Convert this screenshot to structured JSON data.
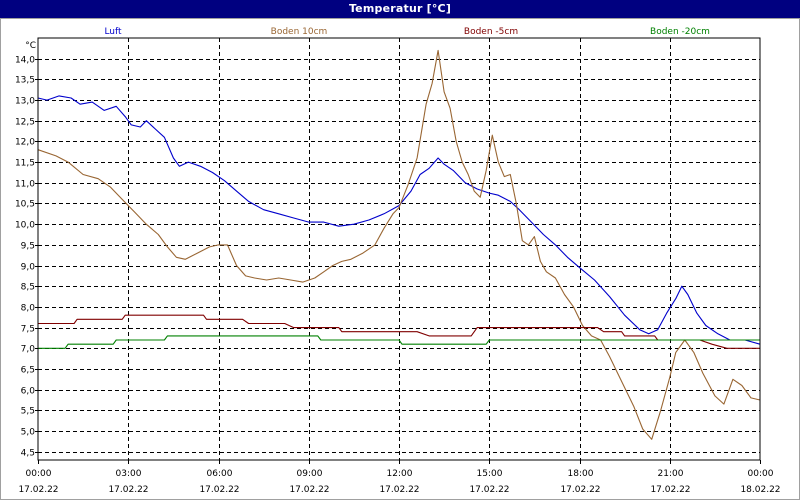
{
  "window": {
    "title": "Temperatur [°C]"
  },
  "colors": {
    "titlebar": "#000080",
    "grid": "#000000",
    "axis_text": "#000000"
  },
  "chart_data": {
    "type": "line",
    "title": "Temperatur [°C]",
    "ylabel": "°C",
    "xlabel": "",
    "ylim": [
      4.3,
      14.5
    ],
    "xlim": [
      0,
      24
    ],
    "grid": true,
    "legend_placement": "top",
    "y_ticks": [
      {
        "value": 4.5,
        "label": "4,5"
      },
      {
        "value": 5.0,
        "label": "5,0"
      },
      {
        "value": 5.5,
        "label": "5,5"
      },
      {
        "value": 6.0,
        "label": "6,0"
      },
      {
        "value": 6.5,
        "label": "6,5"
      },
      {
        "value": 7.0,
        "label": "7,0"
      },
      {
        "value": 7.5,
        "label": "7,5"
      },
      {
        "value": 8.0,
        "label": "8,0"
      },
      {
        "value": 8.5,
        "label": "8,5"
      },
      {
        "value": 9.0,
        "label": "9,0"
      },
      {
        "value": 9.5,
        "label": "9,5"
      },
      {
        "value": 10.0,
        "label": "10,0"
      },
      {
        "value": 10.5,
        "label": "10,5"
      },
      {
        "value": 11.0,
        "label": "11,0"
      },
      {
        "value": 11.5,
        "label": "11,5"
      },
      {
        "value": 12.0,
        "label": "12,0"
      },
      {
        "value": 12.5,
        "label": "12,5"
      },
      {
        "value": 13.0,
        "label": "13,0"
      },
      {
        "value": 13.5,
        "label": "13,5"
      },
      {
        "value": 14.0,
        "label": "14,0"
      }
    ],
    "x_ticks": [
      {
        "value": 0,
        "time": "00:00",
        "date": "17.02.22"
      },
      {
        "value": 3,
        "time": "03:00",
        "date": "17.02.22"
      },
      {
        "value": 6,
        "time": "06:00",
        "date": "17.02.22"
      },
      {
        "value": 9,
        "time": "09:00",
        "date": "17.02.22"
      },
      {
        "value": 12,
        "time": "12:00",
        "date": "17.02.22"
      },
      {
        "value": 15,
        "time": "15:00",
        "date": "17.02.22"
      },
      {
        "value": 18,
        "time": "18:00",
        "date": "17.02.22"
      },
      {
        "value": 21,
        "time": "21:00",
        "date": "17.02.22"
      },
      {
        "value": 24,
        "time": "00:00",
        "date": "18.02.22"
      }
    ],
    "series": [
      {
        "name": "Luft",
        "color": "#0000cc",
        "points": [
          [
            0,
            13.05
          ],
          [
            0.3,
            13.0
          ],
          [
            0.7,
            13.1
          ],
          [
            1.1,
            13.05
          ],
          [
            1.4,
            12.9
          ],
          [
            1.8,
            12.95
          ],
          [
            2.2,
            12.75
          ],
          [
            2.6,
            12.85
          ],
          [
            2.9,
            12.6
          ],
          [
            3.1,
            12.4
          ],
          [
            3.4,
            12.35
          ],
          [
            3.6,
            12.5
          ],
          [
            3.9,
            12.3
          ],
          [
            4.2,
            12.1
          ],
          [
            4.5,
            11.6
          ],
          [
            4.7,
            11.4
          ],
          [
            5.0,
            11.5
          ],
          [
            5.4,
            11.4
          ],
          [
            5.8,
            11.25
          ],
          [
            6.2,
            11.05
          ],
          [
            6.6,
            10.8
          ],
          [
            7.0,
            10.55
          ],
          [
            7.5,
            10.35
          ],
          [
            8.0,
            10.25
          ],
          [
            8.5,
            10.15
          ],
          [
            9.0,
            10.05
          ],
          [
            9.5,
            10.05
          ],
          [
            10.0,
            9.95
          ],
          [
            10.5,
            10.0
          ],
          [
            11.0,
            10.1
          ],
          [
            11.5,
            10.25
          ],
          [
            12.0,
            10.45
          ],
          [
            12.4,
            10.8
          ],
          [
            12.7,
            11.2
          ],
          [
            13.0,
            11.35
          ],
          [
            13.3,
            11.6
          ],
          [
            13.5,
            11.45
          ],
          [
            13.8,
            11.3
          ],
          [
            14.2,
            11.0
          ],
          [
            14.6,
            10.85
          ],
          [
            15.0,
            10.75
          ],
          [
            15.3,
            10.7
          ],
          [
            15.7,
            10.55
          ],
          [
            16.0,
            10.35
          ],
          [
            16.4,
            10.05
          ],
          [
            16.8,
            9.75
          ],
          [
            17.2,
            9.5
          ],
          [
            17.6,
            9.2
          ],
          [
            18.0,
            8.95
          ],
          [
            18.5,
            8.65
          ],
          [
            19.0,
            8.25
          ],
          [
            19.5,
            7.8
          ],
          [
            20.0,
            7.45
          ],
          [
            20.3,
            7.35
          ],
          [
            20.6,
            7.45
          ],
          [
            20.9,
            7.85
          ],
          [
            21.2,
            8.2
          ],
          [
            21.4,
            8.5
          ],
          [
            21.6,
            8.3
          ],
          [
            21.9,
            7.85
          ],
          [
            22.2,
            7.55
          ],
          [
            22.6,
            7.35
          ],
          [
            23.0,
            7.2
          ],
          [
            23.5,
            7.2
          ],
          [
            24.0,
            7.1
          ]
        ]
      },
      {
        "name": "Boden 10cm",
        "color": "#996633",
        "points": [
          [
            0,
            11.8
          ],
          [
            0.6,
            11.65
          ],
          [
            1.0,
            11.5
          ],
          [
            1.5,
            11.2
          ],
          [
            2.0,
            11.1
          ],
          [
            2.4,
            10.9
          ],
          [
            2.8,
            10.6
          ],
          [
            3.2,
            10.3
          ],
          [
            3.6,
            10.0
          ],
          [
            4.0,
            9.75
          ],
          [
            4.3,
            9.45
          ],
          [
            4.6,
            9.2
          ],
          [
            4.9,
            9.15
          ],
          [
            5.3,
            9.3
          ],
          [
            5.7,
            9.45
          ],
          [
            6.0,
            9.5
          ],
          [
            6.3,
            9.5
          ],
          [
            6.6,
            9.0
          ],
          [
            6.9,
            8.75
          ],
          [
            7.2,
            8.7
          ],
          [
            7.6,
            8.65
          ],
          [
            8.0,
            8.7
          ],
          [
            8.4,
            8.65
          ],
          [
            8.8,
            8.6
          ],
          [
            9.2,
            8.7
          ],
          [
            9.5,
            8.85
          ],
          [
            9.8,
            9.0
          ],
          [
            10.1,
            9.1
          ],
          [
            10.4,
            9.15
          ],
          [
            10.8,
            9.3
          ],
          [
            11.2,
            9.5
          ],
          [
            11.5,
            9.9
          ],
          [
            11.8,
            10.25
          ],
          [
            12.0,
            10.4
          ],
          [
            12.3,
            10.95
          ],
          [
            12.6,
            11.6
          ],
          [
            12.9,
            12.9
          ],
          [
            13.1,
            13.4
          ],
          [
            13.3,
            14.2
          ],
          [
            13.5,
            13.2
          ],
          [
            13.7,
            12.8
          ],
          [
            13.9,
            12.0
          ],
          [
            14.1,
            11.5
          ],
          [
            14.3,
            11.2
          ],
          [
            14.5,
            10.8
          ],
          [
            14.7,
            10.65
          ],
          [
            14.9,
            11.3
          ],
          [
            15.1,
            12.15
          ],
          [
            15.3,
            11.5
          ],
          [
            15.5,
            11.15
          ],
          [
            15.7,
            11.2
          ],
          [
            15.9,
            10.5
          ],
          [
            16.1,
            9.6
          ],
          [
            16.3,
            9.5
          ],
          [
            16.5,
            9.7
          ],
          [
            16.7,
            9.1
          ],
          [
            16.9,
            8.85
          ],
          [
            17.2,
            8.7
          ],
          [
            17.5,
            8.3
          ],
          [
            17.8,
            8.0
          ],
          [
            18.1,
            7.55
          ],
          [
            18.4,
            7.3
          ],
          [
            18.7,
            7.2
          ],
          [
            19.0,
            6.8
          ],
          [
            19.4,
            6.2
          ],
          [
            19.8,
            5.6
          ],
          [
            20.1,
            5.05
          ],
          [
            20.4,
            4.8
          ],
          [
            20.7,
            5.5
          ],
          [
            21.0,
            6.3
          ],
          [
            21.2,
            6.9
          ],
          [
            21.5,
            7.2
          ],
          [
            21.8,
            6.9
          ],
          [
            22.1,
            6.4
          ],
          [
            22.5,
            5.85
          ],
          [
            22.8,
            5.65
          ],
          [
            23.1,
            6.25
          ],
          [
            23.4,
            6.1
          ],
          [
            23.7,
            5.8
          ],
          [
            24.0,
            5.75
          ]
        ]
      },
      {
        "name": "Boden -5cm",
        "color": "#800000",
        "points": [
          [
            0,
            7.6
          ],
          [
            0.5,
            7.6
          ],
          [
            1.2,
            7.6
          ],
          [
            1.3,
            7.7
          ],
          [
            2.8,
            7.7
          ],
          [
            2.9,
            7.8
          ],
          [
            5.5,
            7.8
          ],
          [
            5.6,
            7.7
          ],
          [
            6.8,
            7.7
          ],
          [
            7.0,
            7.6
          ],
          [
            8.2,
            7.6
          ],
          [
            8.5,
            7.5
          ],
          [
            10.0,
            7.5
          ],
          [
            10.1,
            7.4
          ],
          [
            12.6,
            7.4
          ],
          [
            13.0,
            7.3
          ],
          [
            14.4,
            7.3
          ],
          [
            14.6,
            7.5
          ],
          [
            18.6,
            7.5
          ],
          [
            18.8,
            7.4
          ],
          [
            19.4,
            7.4
          ],
          [
            19.5,
            7.3
          ],
          [
            20.5,
            7.3
          ],
          [
            20.6,
            7.2
          ],
          [
            22.0,
            7.2
          ],
          [
            22.4,
            7.1
          ],
          [
            22.9,
            7.0
          ],
          [
            24.0,
            7.0
          ]
        ]
      },
      {
        "name": "Boden -20cm",
        "color": "#008000",
        "points": [
          [
            0,
            7.0
          ],
          [
            0.9,
            7.0
          ],
          [
            1.0,
            7.1
          ],
          [
            2.5,
            7.1
          ],
          [
            2.6,
            7.2
          ],
          [
            4.2,
            7.2
          ],
          [
            4.3,
            7.3
          ],
          [
            9.3,
            7.3
          ],
          [
            9.4,
            7.2
          ],
          [
            12.0,
            7.2
          ],
          [
            12.1,
            7.1
          ],
          [
            14.9,
            7.1
          ],
          [
            15.0,
            7.2
          ],
          [
            24.0,
            7.2
          ]
        ]
      }
    ]
  }
}
